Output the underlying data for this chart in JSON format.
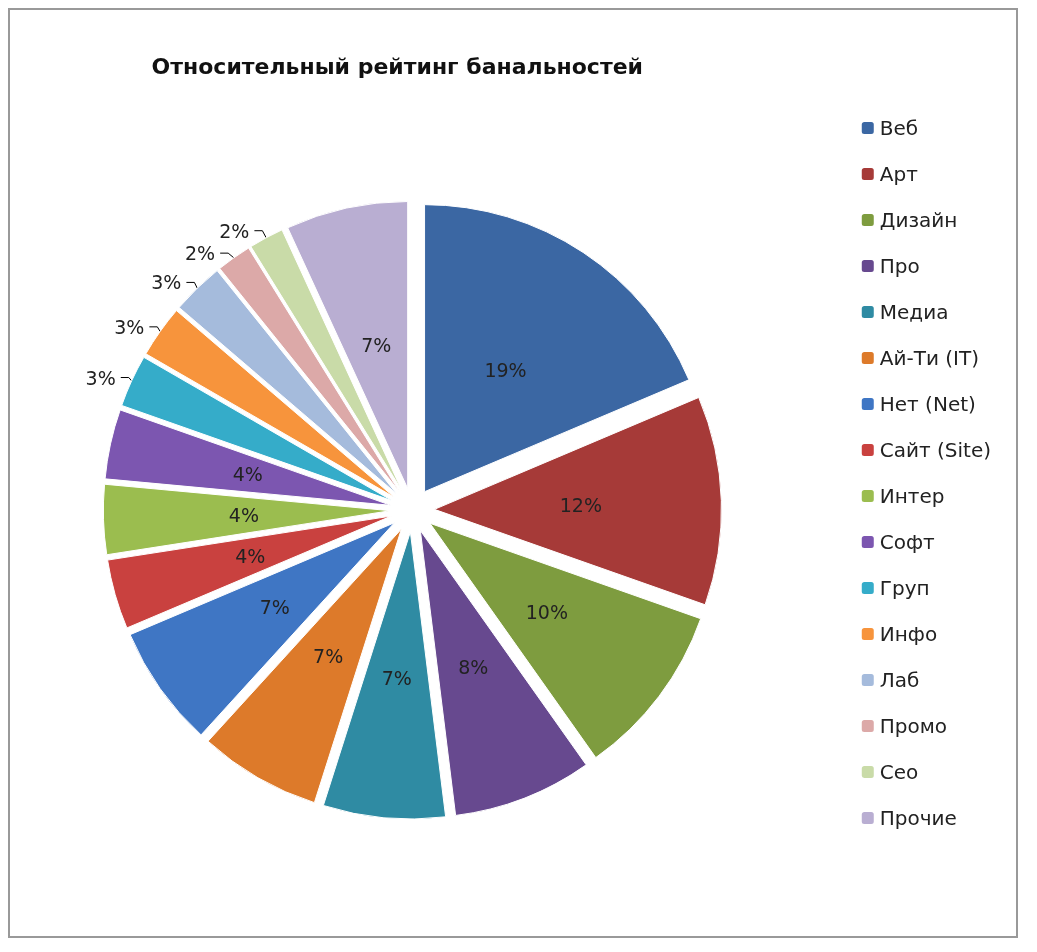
{
  "chart_data": {
    "type": "pie",
    "title": "Относительный рейтинг банальностей",
    "categories": [
      "Веб",
      "Арт",
      "Дизайн",
      "Про",
      "Медиа",
      "Ай-Ти (IT)",
      "Нет (Net)",
      "Сайт (Site)",
      "Интер",
      "Софт",
      "Груп",
      "Инфо",
      "Лаб",
      "Промо",
      "Сео",
      "Прочие"
    ],
    "values": [
      19,
      12,
      10,
      8,
      7,
      7,
      7,
      4,
      4,
      4,
      3,
      3,
      3,
      2,
      2,
      7
    ],
    "colors": [
      "#3b67a3",
      "#a63a38",
      "#7e9c3f",
      "#67498f",
      "#2f8ba3",
      "#dd7a2a",
      "#3f76c4",
      "#c9413f",
      "#9bbd4f",
      "#7c56b0",
      "#35acc9",
      "#f7943c",
      "#a5bbdc",
      "#dca9a8",
      "#c9dba8",
      "#b9aed2"
    ],
    "value_labels": [
      "19%",
      "12%",
      "10%",
      "8%",
      "7%",
      "7%",
      "7%",
      "4%",
      "4%",
      "4%",
      "3%",
      "3%",
      "3%",
      "2%",
      "2%",
      "7%"
    ],
    "legend": "right"
  }
}
